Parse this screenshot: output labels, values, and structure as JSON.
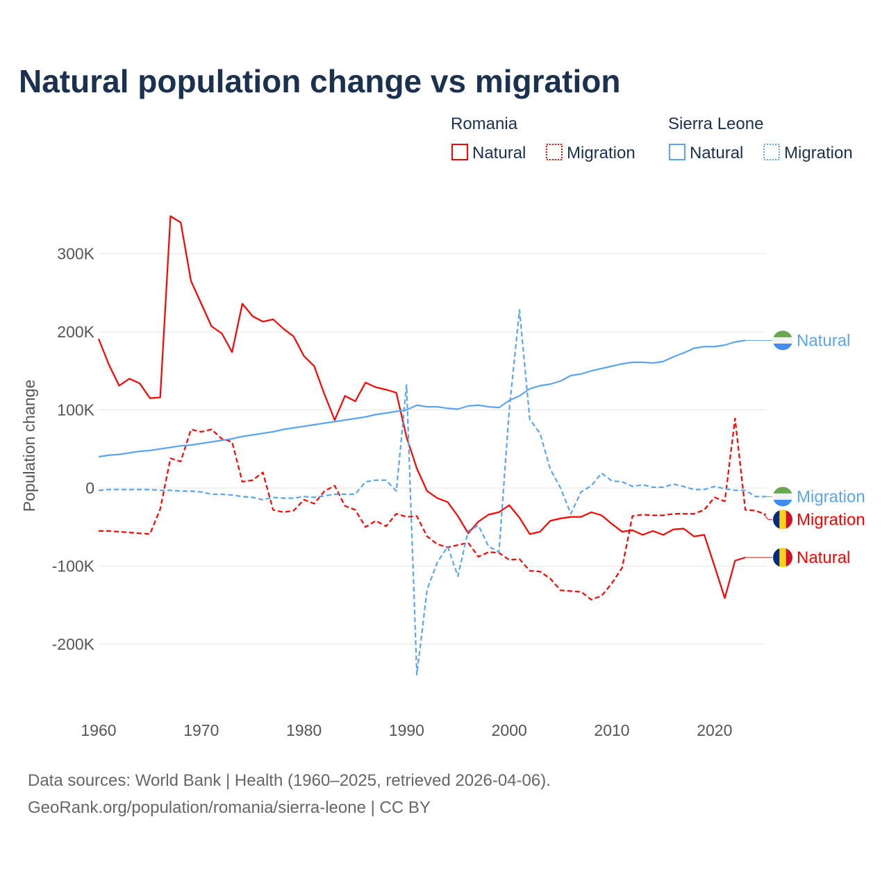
{
  "chart_data": {
    "type": "line",
    "title": "Natural population change vs migration",
    "ylabel": "Population change",
    "xlabel": "",
    "xlim": [
      1960,
      2025
    ],
    "ylim": [
      -250000,
      360000
    ],
    "xticks": [
      1960,
      1970,
      1980,
      1990,
      2000,
      2010,
      2020
    ],
    "xtick_labels": [
      "1960",
      "1970",
      "1980",
      "1990",
      "2000",
      "2010",
      "2020"
    ],
    "yticks": [
      -200000,
      -100000,
      0,
      100000,
      200000,
      300000
    ],
    "ytick_labels": [
      "-200K",
      "-100K",
      "0",
      "100K",
      "200K",
      "300K"
    ],
    "grid": true,
    "legend": {
      "placement": "top-right",
      "groups": [
        {
          "title": "Romania",
          "entries": [
            {
              "label": "Natural",
              "style": "solid"
            },
            {
              "label": "Migration",
              "style": "dashed"
            }
          ]
        },
        {
          "title": "Sierra Leone",
          "entries": [
            {
              "label": "Natural",
              "style": "solid"
            },
            {
              "label": "Migration",
              "style": "dashed"
            }
          ]
        }
      ]
    },
    "series": [
      {
        "name": "Romania Natural",
        "country": "Romania",
        "label": "Natural",
        "color": "#ff0000",
        "dash": false,
        "start": 1960,
        "values": [
          191,
          158,
          131,
          140,
          134,
          115,
          116,
          348,
          340,
          265,
          236,
          207,
          198,
          174,
          236,
          220,
          213,
          216,
          204,
          194,
          169,
          156,
          120,
          87,
          118,
          111,
          135,
          129,
          126,
          122,
          65,
          25,
          -4,
          -13,
          -18,
          -36,
          -58,
          -43,
          -34,
          -31,
          -22,
          -38,
          -59,
          -56,
          -42,
          -39,
          -37,
          -37,
          -31,
          -35,
          -46,
          -56,
          -54,
          -60,
          -55,
          -60,
          -53,
          -52,
          -62,
          -60,
          -100,
          -141,
          -93,
          -89
        ]
      },
      {
        "name": "Romania Migration",
        "country": "Romania",
        "label": "Migration",
        "color": "#ff0000",
        "dash": true,
        "start": 1960,
        "values": [
          -55,
          -55,
          -56,
          -57,
          -58,
          -59,
          -27,
          38,
          34,
          75,
          72,
          75,
          63,
          59,
          8,
          10,
          20,
          -28,
          -31,
          -29,
          -15,
          -20,
          -4,
          3,
          -23,
          -28,
          -50,
          -42,
          -49,
          -33,
          -37,
          -36,
          -62,
          -72,
          -76,
          -73,
          -70,
          -88,
          -82,
          -83,
          -92,
          -91,
          -106,
          -107,
          -116,
          -131,
          -132,
          -133,
          -143,
          -138,
          -122,
          -102,
          -36,
          -34,
          -35,
          -35,
          -33,
          -33,
          -33,
          -28,
          -12,
          -17,
          89,
          -28,
          -29,
          -34
        ]
      },
      {
        "name": "Sierra Leone Natural",
        "country": "Sierra Leone",
        "label": "Natural",
        "color": "#5aa5ee",
        "dash": false,
        "start": 1960,
        "values": [
          40,
          42,
          43,
          45,
          47,
          48,
          50,
          52,
          54,
          55,
          57,
          59,
          61,
          63,
          66,
          68,
          70,
          72,
          75,
          77,
          79,
          81,
          83,
          85,
          87,
          89,
          91,
          94,
          96,
          98,
          100,
          106,
          104,
          104,
          102,
          101,
          105,
          106,
          104,
          103,
          112,
          118,
          127,
          131,
          133,
          137,
          144,
          146,
          150,
          153,
          156,
          159,
          161,
          161,
          160,
          162,
          168,
          173,
          179,
          181,
          181,
          183,
          187,
          189
        ]
      },
      {
        "name": "Sierra Leone Migration",
        "country": "Sierra Leone",
        "label": "Migration",
        "color": "#5aa5ee",
        "dash": true,
        "start": 1960,
        "values": [
          -3,
          -2,
          -2,
          -2,
          -2,
          -2,
          -3,
          -3,
          -4,
          -4,
          -5,
          -8,
          -8,
          -9,
          -11,
          -12,
          -15,
          -12,
          -13,
          -13,
          -11,
          -12,
          -10,
          -8,
          -8,
          -8,
          8,
          10,
          10,
          -4,
          132,
          -239,
          -130,
          -95,
          -75,
          -113,
          -55,
          -48,
          -75,
          -82,
          100,
          228,
          88,
          70,
          24,
          0,
          -33,
          -5,
          3,
          19,
          9,
          8,
          2,
          4,
          1,
          1,
          5,
          2,
          -2,
          -2,
          2,
          -1,
          -3,
          -3,
          -11,
          -11
        ]
      }
    ],
    "value_unit": "thousands"
  },
  "end_labels": [
    {
      "series": 2,
      "text": "Natural",
      "flag": "sierra-leone"
    },
    {
      "series": 3,
      "text": "Migration",
      "flag": "sierra-leone"
    },
    {
      "series": 1,
      "text": "Migration",
      "flag": "romania"
    },
    {
      "series": 0,
      "text": "Natural",
      "flag": "romania"
    }
  ],
  "footer": {
    "line1": "Data sources: World Bank | Health (1960–2025, retrieved 2026-04-06).",
    "line2": "GeoRank.org/population/romania/sierra-leone | CC BY"
  }
}
